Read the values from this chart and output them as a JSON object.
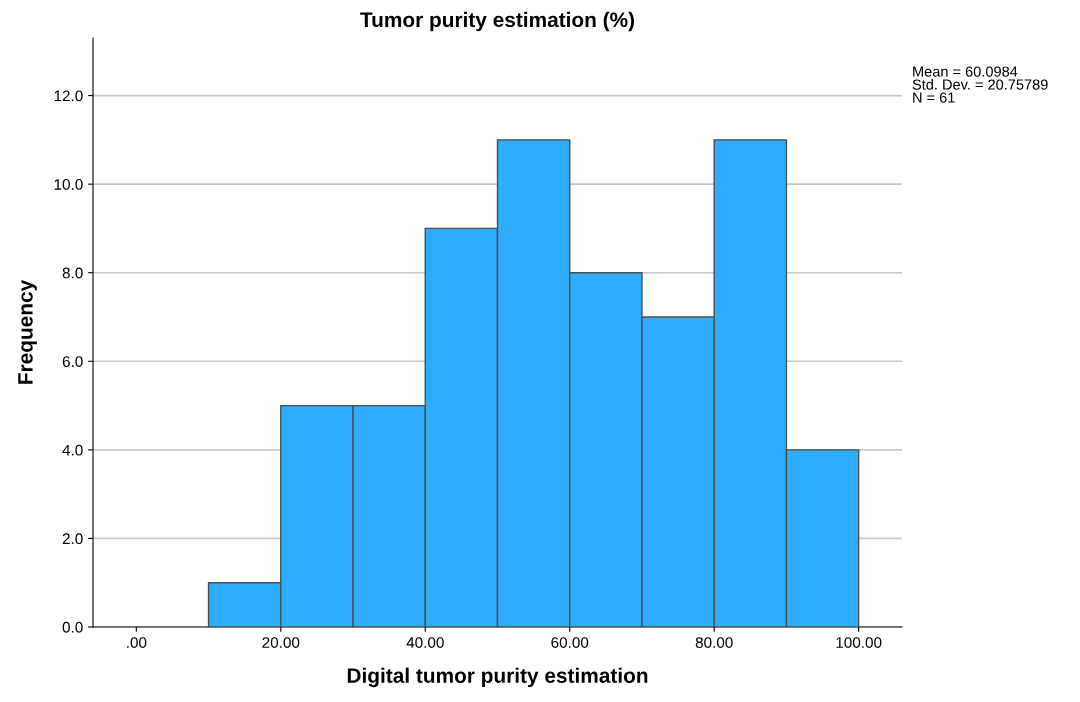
{
  "chart_data": {
    "type": "histogram",
    "title": "Tumor purity estimation (%)",
    "xlabel": "Digital tumor purity estimation",
    "ylabel": "Frequency",
    "bins": [
      10,
      20,
      30,
      40,
      50,
      60,
      70,
      80,
      90,
      100
    ],
    "values": [
      1,
      5,
      5,
      9,
      11,
      8,
      7,
      11,
      4
    ],
    "color": "#2eadfc",
    "xlim": [
      -6,
      106
    ],
    "xticks": [
      {
        "value": 0,
        "label": ".00"
      },
      {
        "value": 20,
        "label": "20.00"
      },
      {
        "value": 40,
        "label": "40.00"
      },
      {
        "value": 60,
        "label": "60.00"
      },
      {
        "value": 80,
        "label": "80.00"
      },
      {
        "value": 100,
        "label": "100.00"
      }
    ],
    "ylim": [
      0,
      13.3
    ],
    "yticks": [
      {
        "value": 0,
        "label": "0.0"
      },
      {
        "value": 2,
        "label": "2.0"
      },
      {
        "value": 4,
        "label": "4.0"
      },
      {
        "value": 6,
        "label": "6.0"
      },
      {
        "value": 8,
        "label": "8.0"
      },
      {
        "value": 10,
        "label": "10.0"
      },
      {
        "value": 12,
        "label": "12.0"
      }
    ],
    "grid": "y",
    "annotations": [
      "Mean = 60.0984",
      "Std. Dev. = 20.75789",
      "N = 61"
    ]
  }
}
